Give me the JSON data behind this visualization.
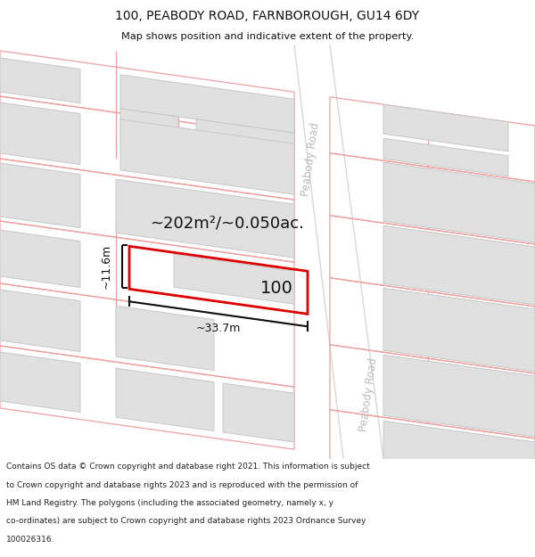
{
  "title_line1": "100, PEABODY ROAD, FARNBOROUGH, GU14 6DY",
  "title_line2": "Map shows position and indicative extent of the property.",
  "footer_text": "Contains OS data © Crown copyright and database right 2021. This information is subject to Crown copyright and database rights 2023 and is reproduced with the permission of HM Land Registry. The polygons (including the associated geometry, namely x, y co-ordinates) are subject to Crown copyright and database rights 2023 Ordnance Survey 100026316.",
  "area_label": "~202m²/~0.050ac.",
  "width_label": "~33.7m",
  "height_label": "~11.6m",
  "house_number": "100",
  "road_label_upper": "Peabody Road",
  "road_label_lower": "Peabody Road",
  "bg_color": "#ffffff",
  "building_fill": "#e0e0e0",
  "building_edge": "#c8c8c8",
  "pink_edge": "#f0a0a0",
  "plot_stroke": "#dd0000",
  "dim_color": "#111111",
  "title_color": "#111111",
  "footer_color": "#222222",
  "road_text_color": "#bbbbbb"
}
